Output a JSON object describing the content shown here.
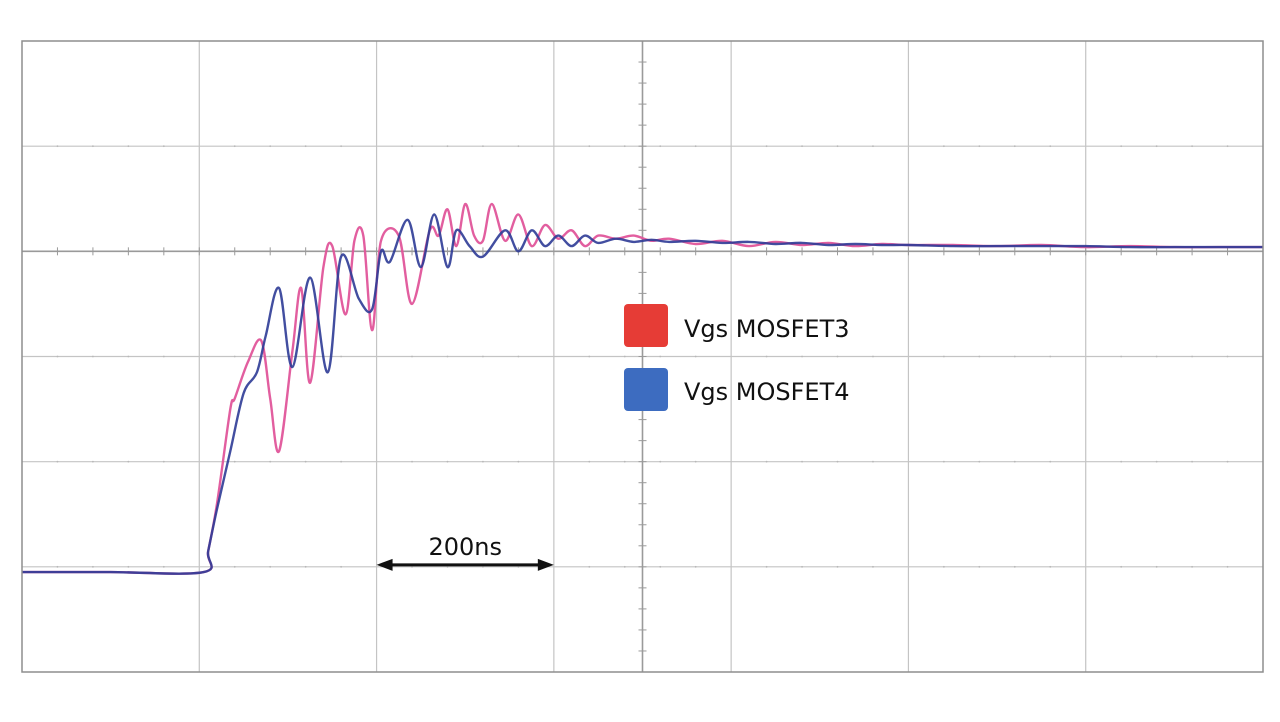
{
  "chart_data": {
    "type": "line",
    "title": "",
    "xlabel": "",
    "ylabel": "",
    "xlim": [
      0,
      1400
    ],
    "ylim": [
      -4,
      2
    ],
    "x_divisions": 7,
    "y_divisions": 6,
    "grid": true,
    "legend_position": "center-right",
    "colors": {
      "plot_border": "#8e8e8e",
      "grid": "#c4c4c4",
      "axis": "#9a9a9a",
      "background": "#ffffff"
    },
    "series": [
      {
        "name": "Vgs MOSFET3",
        "line_color": "#e0559a",
        "legend_color": "#e63c36",
        "x": [
          0,
          100,
          205,
          210,
          220,
          235,
          240,
          255,
          270,
          280,
          290,
          305,
          315,
          325,
          340,
          350,
          365,
          375,
          385,
          395,
          405,
          425,
          440,
          460,
          470,
          480,
          490,
          500,
          510,
          520,
          530,
          545,
          560,
          575,
          590,
          605,
          620,
          635,
          650,
          670,
          690,
          710,
          730,
          760,
          790,
          820,
          850,
          880,
          910,
          940,
          970,
          1000,
          1050,
          1100,
          1150,
          1200,
          1250,
          1300,
          1350,
          1400
        ],
        "y": [
          -3.05,
          -3.05,
          -3.05,
          -2.85,
          -2.4,
          -1.5,
          -1.4,
          -1.05,
          -0.85,
          -1.4,
          -1.9,
          -0.95,
          -0.35,
          -1.25,
          -0.15,
          0.05,
          -0.6,
          0.1,
          0.15,
          -0.75,
          0.1,
          0.15,
          -0.5,
          0.2,
          0.15,
          0.4,
          0.05,
          0.45,
          0.15,
          0.1,
          0.45,
          0.1,
          0.35,
          0.05,
          0.25,
          0.12,
          0.2,
          0.05,
          0.15,
          0.12,
          0.15,
          0.1,
          0.12,
          0.07,
          0.1,
          0.05,
          0.09,
          0.06,
          0.08,
          0.05,
          0.07,
          0.06,
          0.06,
          0.05,
          0.06,
          0.04,
          0.05,
          0.04,
          0.04,
          0.04
        ]
      },
      {
        "name": "Vgs MOSFET4",
        "line_color": "#2e3b96",
        "legend_color": "#3d6cc0",
        "x": [
          0,
          100,
          205,
          210,
          220,
          235,
          250,
          265,
          275,
          290,
          305,
          325,
          345,
          360,
          380,
          395,
          405,
          415,
          435,
          450,
          465,
          480,
          490,
          505,
          520,
          545,
          560,
          575,
          590,
          605,
          620,
          635,
          650,
          670,
          690,
          710,
          730,
          760,
          790,
          820,
          850,
          880,
          910,
          940,
          970,
          1000,
          1050,
          1100,
          1150,
          1200,
          1250,
          1300,
          1350,
          1400
        ],
        "y": [
          -3.05,
          -3.05,
          -3.05,
          -2.85,
          -2.45,
          -1.9,
          -1.35,
          -1.15,
          -0.8,
          -0.35,
          -1.1,
          -0.25,
          -1.15,
          -0.05,
          -0.45,
          -0.55,
          0.0,
          -0.1,
          0.3,
          -0.15,
          0.35,
          -0.15,
          0.2,
          0.05,
          -0.05,
          0.2,
          0.0,
          0.2,
          0.05,
          0.15,
          0.05,
          0.15,
          0.08,
          0.12,
          0.09,
          0.11,
          0.09,
          0.1,
          0.08,
          0.09,
          0.07,
          0.08,
          0.06,
          0.07,
          0.06,
          0.06,
          0.05,
          0.05,
          0.05,
          0.05,
          0.04,
          0.04,
          0.04,
          0.04
        ]
      }
    ],
    "legend": {
      "entries": [
        "Vgs MOSFET3",
        "Vgs MOSFET4"
      ]
    },
    "annotation": {
      "label": "200ns",
      "x_start": 400,
      "x_end": 600,
      "y": -3.0
    }
  }
}
